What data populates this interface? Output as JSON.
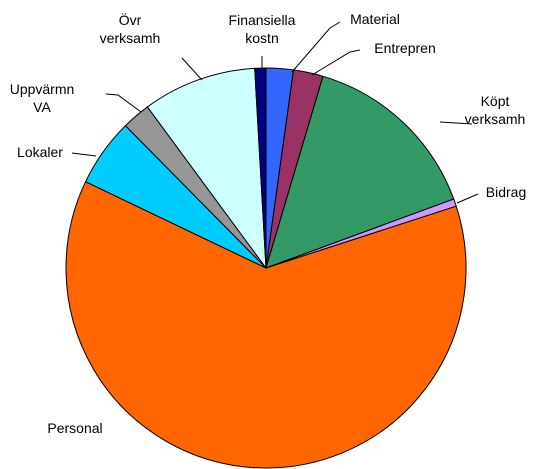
{
  "chart_data": {
    "type": "pie",
    "categories": [
      "Material",
      "Entrepren",
      "Köpt\nverksamh",
      "Bidrag",
      "Personal",
      "Lokaler",
      "Uppvärmn\nVA",
      "Övr\nverksamh",
      "Finansiella\nkostn"
    ],
    "values": [
      2.2,
      2.4,
      14.8,
      0.6,
      62.1,
      5.5,
      2.3,
      9.2,
      0.9
    ],
    "colors": [
      "#3366ff",
      "#993366",
      "#339966",
      "#cc99ff",
      "#ff6600",
      "#00ccff",
      "#969696",
      "#ccffff",
      "#000080"
    ]
  }
}
